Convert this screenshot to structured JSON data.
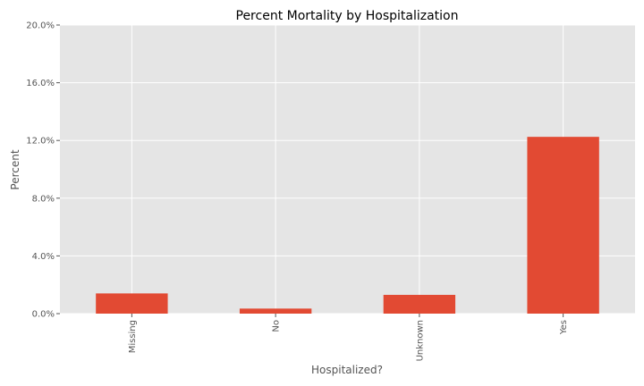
{
  "chart_data": {
    "type": "bar",
    "title": "Percent Mortality by Hospitalization",
    "xlabel": "Hospitalized?",
    "ylabel": "Percent",
    "categories": [
      "Missing",
      "No",
      "Unknown",
      "Yes"
    ],
    "values": [
      1.4,
      0.35,
      1.3,
      12.25
    ],
    "ylim": [
      0,
      20
    ],
    "yticks": [
      "0.0%",
      "4.0%",
      "8.0%",
      "12.0%",
      "16.0%",
      "20.0%"
    ],
    "grid": true,
    "colors": {
      "bar": "#e24a33",
      "plot_background": "#e5e5e5",
      "grid": "#ffffff",
      "text": "#555555"
    }
  }
}
